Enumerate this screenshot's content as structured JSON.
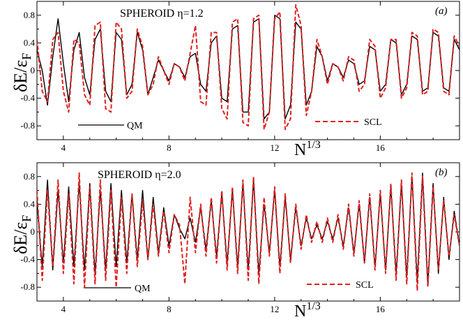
{
  "chart_data": [
    {
      "panel": "(a)",
      "type": "line",
      "title": "SPHEROID  η=1.2",
      "xlabel": "N",
      "xlabel_sup": "1/3",
      "ylabel": "δE/ε",
      "ylabel_sub": "F",
      "xlim": [
        3,
        19
      ],
      "ylim": [
        -1.0,
        1.0
      ],
      "x_ticks": [
        4,
        8,
        12,
        16
      ],
      "y_ticks": [
        -0.8,
        -0.4,
        0,
        0.4,
        0.8
      ],
      "x_tick_labels": [
        "4",
        "8",
        "12",
        "16"
      ],
      "y_tick_labels": [
        "-0.8",
        "-0.4",
        "0",
        "0.4",
        "0.8"
      ],
      "legend_position": "bottom",
      "series": [
        {
          "name": "QM",
          "color": "#000000",
          "style": "solid",
          "x": [
            3.0,
            3.2,
            3.4,
            3.6,
            3.8,
            4.0,
            4.2,
            4.4,
            4.6,
            4.8,
            5.0,
            5.2,
            5.4,
            5.6,
            5.8,
            6.0,
            6.2,
            6.4,
            6.6,
            6.8,
            7.0,
            7.2,
            7.4,
            7.6,
            7.8,
            8.0,
            8.2,
            8.4,
            8.6,
            8.8,
            9.0,
            9.2,
            9.4,
            9.6,
            9.8,
            10.0,
            10.2,
            10.4,
            10.6,
            10.8,
            11.0,
            11.2,
            11.4,
            11.6,
            11.8,
            12.0,
            12.2,
            12.4,
            12.6,
            12.8,
            13.0,
            13.2,
            13.4,
            13.6,
            13.8,
            14.0,
            14.2,
            14.4,
            14.6,
            14.8,
            15.0,
            15.2,
            15.4,
            15.6,
            15.8,
            16.0,
            16.2,
            16.4,
            16.6,
            16.8,
            17.0,
            17.2,
            17.4,
            17.6,
            17.8,
            18.0,
            18.2,
            18.4,
            18.6,
            18.8,
            19.0
          ],
          "y": [
            0.3,
            0.0,
            -0.5,
            0.2,
            0.75,
            0.1,
            -0.45,
            0.3,
            0.55,
            -0.1,
            -0.35,
            0.45,
            0.6,
            -0.3,
            -0.45,
            0.55,
            0.45,
            -0.35,
            -0.2,
            0.55,
            0.3,
            -0.35,
            -0.1,
            0.15,
            0.0,
            -0.15,
            0.1,
            0.05,
            -0.1,
            0.2,
            0.25,
            -0.2,
            -0.3,
            0.4,
            0.5,
            -0.4,
            -0.45,
            0.6,
            0.65,
            -0.6,
            -0.6,
            0.7,
            0.75,
            -0.7,
            -0.6,
            0.8,
            0.75,
            -0.7,
            -0.5,
            0.7,
            0.6,
            -0.5,
            -0.3,
            0.35,
            0.2,
            -0.15,
            0.1,
            0.05,
            -0.1,
            0.15,
            0.1,
            -0.2,
            -0.15,
            0.35,
            0.3,
            -0.3,
            -0.2,
            0.45,
            0.4,
            -0.35,
            -0.2,
            0.5,
            0.45,
            -0.3,
            -0.25,
            0.55,
            0.5,
            -0.25,
            -0.3,
            0.45,
            0.3
          ]
        },
        {
          "name": "SCL",
          "color": "#e02020",
          "style": "dashed",
          "x": [
            3.0,
            3.2,
            3.4,
            3.6,
            3.8,
            4.0,
            4.2,
            4.4,
            4.6,
            4.8,
            5.0,
            5.2,
            5.4,
            5.6,
            5.8,
            6.0,
            6.2,
            6.4,
            6.6,
            6.8,
            7.0,
            7.2,
            7.4,
            7.6,
            7.8,
            8.0,
            8.2,
            8.4,
            8.6,
            8.8,
            9.0,
            9.2,
            9.4,
            9.6,
            9.8,
            10.0,
            10.2,
            10.4,
            10.6,
            10.8,
            11.0,
            11.2,
            11.4,
            11.6,
            11.8,
            12.0,
            12.2,
            12.4,
            12.6,
            12.8,
            13.0,
            13.2,
            13.4,
            13.6,
            13.8,
            14.0,
            14.2,
            14.4,
            14.6,
            14.8,
            15.0,
            15.2,
            15.4,
            15.6,
            15.8,
            16.0,
            16.2,
            16.4,
            16.6,
            16.8,
            17.0,
            17.2,
            17.4,
            17.6,
            17.8,
            18.0,
            18.2,
            18.4,
            18.6,
            18.8,
            19.0
          ],
          "y": [
            0.45,
            -0.3,
            -0.45,
            0.45,
            0.55,
            -0.3,
            -0.6,
            0.45,
            0.4,
            -0.35,
            -0.5,
            0.65,
            0.7,
            -0.55,
            -0.6,
            0.7,
            0.6,
            -0.4,
            -0.3,
            0.6,
            0.35,
            -0.35,
            -0.2,
            0.2,
            0.0,
            -0.2,
            0.1,
            0.05,
            -0.15,
            0.25,
            0.65,
            -0.45,
            -0.5,
            0.55,
            0.55,
            -0.55,
            -0.7,
            0.7,
            0.75,
            -0.75,
            -0.8,
            0.75,
            0.8,
            -0.85,
            -0.6,
            0.75,
            0.85,
            -0.85,
            -0.7,
            0.95,
            0.65,
            -0.65,
            -0.3,
            0.45,
            0.2,
            -0.2,
            0.1,
            0.05,
            -0.15,
            0.2,
            0.15,
            -0.3,
            -0.2,
            0.45,
            0.35,
            -0.4,
            -0.25,
            0.45,
            0.45,
            -0.4,
            -0.25,
            0.55,
            0.5,
            -0.35,
            -0.3,
            0.6,
            0.55,
            -0.3,
            -0.35,
            0.5,
            0.35
          ]
        }
      ]
    },
    {
      "panel": "(b)",
      "type": "line",
      "title": "SPHEROID   η=2.0",
      "xlabel": "N",
      "xlabel_sup": "1/3",
      "ylabel": "δE/ε",
      "ylabel_sub": "F",
      "xlim": [
        3,
        19
      ],
      "ylim": [
        -1.0,
        1.0
      ],
      "x_ticks": [
        4,
        8,
        12,
        16
      ],
      "y_ticks": [
        -0.8,
        -0.4,
        0,
        0.4,
        0.8
      ],
      "x_tick_labels": [
        "4",
        "8",
        "12",
        "16"
      ],
      "y_tick_labels": [
        "-0.8",
        "-0.4",
        "0",
        "0.4",
        "0.8"
      ],
      "legend_position": "bottom",
      "series": [
        {
          "name": "QM",
          "color": "#000000",
          "style": "solid",
          "x": [
            3.0,
            3.2,
            3.4,
            3.6,
            3.8,
            4.0,
            4.2,
            4.4,
            4.6,
            4.8,
            5.0,
            5.2,
            5.4,
            5.6,
            5.8,
            6.0,
            6.2,
            6.4,
            6.6,
            6.8,
            7.0,
            7.2,
            7.4,
            7.6,
            7.8,
            8.0,
            8.2,
            8.4,
            8.6,
            8.8,
            9.0,
            9.2,
            9.4,
            9.6,
            9.8,
            10.0,
            10.2,
            10.4,
            10.6,
            10.8,
            11.0,
            11.2,
            11.4,
            11.6,
            11.8,
            12.0,
            12.2,
            12.4,
            12.6,
            12.8,
            13.0,
            13.2,
            13.4,
            13.6,
            13.8,
            14.0,
            14.2,
            14.4,
            14.6,
            14.8,
            15.0,
            15.2,
            15.4,
            15.6,
            15.8,
            16.0,
            16.2,
            16.4,
            16.6,
            16.8,
            17.0,
            17.2,
            17.4,
            17.6,
            17.8,
            18.0,
            18.2,
            18.4,
            18.6,
            18.8,
            19.0
          ],
          "y": [
            0.45,
            -0.5,
            0.75,
            -0.55,
            0.6,
            -0.45,
            0.65,
            -0.5,
            0.7,
            -0.55,
            0.7,
            -0.6,
            0.6,
            -0.55,
            0.7,
            -0.5,
            0.6,
            -0.45,
            0.55,
            -0.4,
            0.6,
            -0.4,
            0.5,
            -0.3,
            0.35,
            -0.2,
            0.25,
            0.05,
            -0.1,
            0.2,
            -0.15,
            0.35,
            -0.25,
            0.45,
            -0.35,
            0.55,
            -0.45,
            0.6,
            -0.5,
            0.7,
            -0.55,
            0.75,
            -0.6,
            0.4,
            -0.3,
            0.6,
            -0.5,
            0.5,
            -0.4,
            0.35,
            -0.2,
            0.2,
            -0.1,
            0.1,
            -0.1,
            0.15,
            -0.1,
            0.2,
            -0.2,
            0.35,
            -0.3,
            0.4,
            -0.45,
            0.5,
            -0.5,
            0.55,
            -0.55,
            0.65,
            -0.6,
            0.7,
            -0.65,
            0.8,
            -0.7,
            0.85,
            -0.75,
            0.7,
            -0.6,
            0.5,
            -0.4,
            0.3,
            -0.2
          ]
        },
        {
          "name": "SCL",
          "color": "#e02020",
          "style": "dashed",
          "x": [
            3.0,
            3.2,
            3.4,
            3.6,
            3.8,
            4.0,
            4.2,
            4.4,
            4.6,
            4.8,
            5.0,
            5.2,
            5.4,
            5.6,
            5.8,
            6.0,
            6.2,
            6.4,
            6.6,
            6.8,
            7.0,
            7.2,
            7.4,
            7.6,
            7.8,
            8.0,
            8.2,
            8.4,
            8.6,
            8.8,
            9.0,
            9.2,
            9.4,
            9.6,
            9.8,
            10.0,
            10.2,
            10.4,
            10.6,
            10.8,
            11.0,
            11.2,
            11.4,
            11.6,
            11.8,
            12.0,
            12.2,
            12.4,
            12.6,
            12.8,
            13.0,
            13.2,
            13.4,
            13.6,
            13.8,
            14.0,
            14.2,
            14.4,
            14.6,
            14.8,
            15.0,
            15.2,
            15.4,
            15.6,
            15.8,
            16.0,
            16.2,
            16.4,
            16.6,
            16.8,
            17.0,
            17.2,
            17.4,
            17.6,
            17.8,
            18.0,
            18.2,
            18.4,
            18.6,
            18.8,
            19.0
          ],
          "y": [
            0.6,
            -0.7,
            0.6,
            -0.5,
            0.75,
            -0.6,
            0.55,
            -0.75,
            0.85,
            -0.8,
            0.65,
            -0.75,
            0.75,
            -0.7,
            0.6,
            -0.8,
            0.5,
            -0.6,
            0.55,
            -0.5,
            0.45,
            -0.4,
            0.4,
            -0.35,
            0.3,
            -0.3,
            0.25,
            0.1,
            -0.75,
            0.5,
            -0.3,
            0.4,
            -0.35,
            0.5,
            -0.45,
            0.6,
            -0.55,
            0.65,
            -0.6,
            0.75,
            -0.7,
            0.8,
            -0.75,
            0.5,
            -0.35,
            0.65,
            -0.6,
            0.55,
            -0.45,
            0.4,
            -0.25,
            0.25,
            -0.15,
            0.15,
            -0.15,
            0.2,
            -0.15,
            0.25,
            -0.25,
            0.4,
            -0.35,
            0.45,
            -0.45,
            0.55,
            -0.55,
            0.6,
            -0.6,
            0.7,
            -0.7,
            0.75,
            -0.75,
            0.85,
            -0.85,
            0.8,
            -0.8,
            0.65,
            -0.55,
            0.45,
            -0.35,
            0.25,
            -0.2
          ]
        }
      ]
    }
  ]
}
